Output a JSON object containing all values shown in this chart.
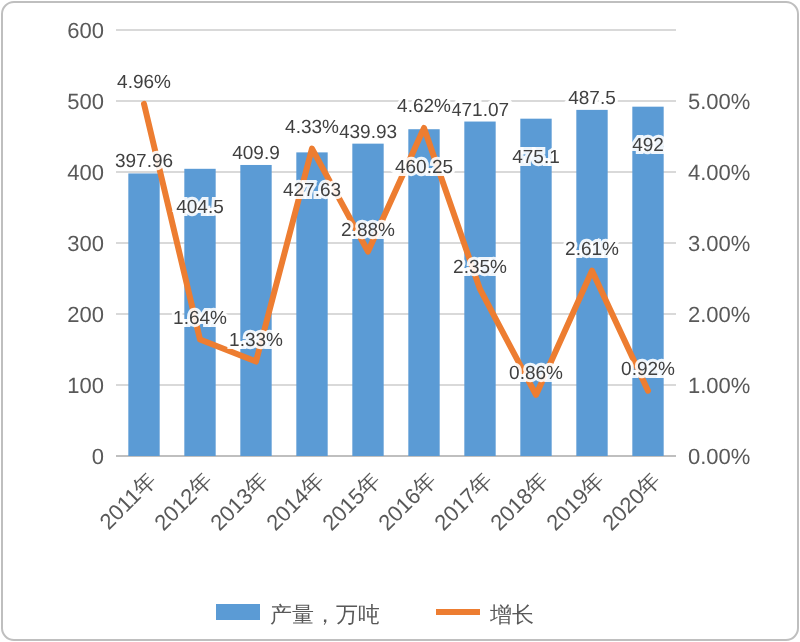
{
  "chart_data": {
    "type": "bar",
    "categories": [
      "2011年",
      "2012年",
      "2013年",
      "2014年",
      "2015年",
      "2016年",
      "2017年",
      "2018年",
      "2019年",
      "2020年"
    ],
    "series": [
      {
        "name": "产量，万吨",
        "type": "bar",
        "color": "#5b9bd5",
        "values": [
          397.96,
          404.5,
          409.9,
          427.63,
          439.93,
          460.25,
          471.07,
          475.1,
          487.5,
          492
        ]
      },
      {
        "name": "增长",
        "type": "line",
        "axis": "y2",
        "color": "#ed7d31",
        "values": [
          4.96,
          1.64,
          1.33,
          4.33,
          2.88,
          4.62,
          2.35,
          0.86,
          2.61,
          0.92
        ],
        "value_labels": [
          "4.96%",
          "1.64%",
          "1.33%",
          "4.33%",
          "2.88%",
          "4.62%",
          "2.35%",
          "0.86%",
          "2.61%",
          "0.92%"
        ]
      }
    ],
    "ylim": [
      0,
      600
    ],
    "yticks": [
      0,
      100,
      200,
      300,
      400,
      500,
      600
    ],
    "y2lim": [
      0,
      6
    ],
    "y2ticks": [
      {
        "value": 0,
        "label": "0.00%"
      },
      {
        "value": 1,
        "label": "1.00%"
      },
      {
        "value": 2,
        "label": "2.00%"
      },
      {
        "value": 3,
        "label": "3.00%"
      },
      {
        "value": 4,
        "label": "4.00%"
      },
      {
        "value": 5,
        "label": "5.00%"
      },
      {
        "value": 6,
        "label": null
      }
    ],
    "grid": "y",
    "legend": "bottom",
    "data_labels": true,
    "marker": "none",
    "line_style": "solid"
  }
}
